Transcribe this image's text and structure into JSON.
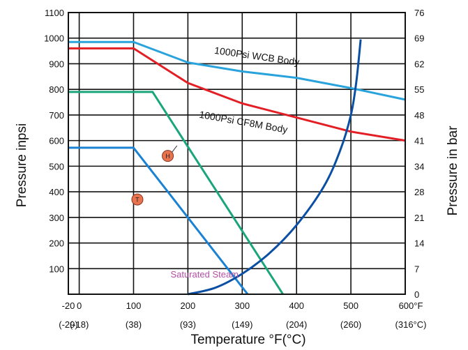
{
  "chart_data": {
    "type": "line",
    "title": "",
    "xlabel": "Temperature °F(°C)",
    "ylabel_left": "Pressure inpsi",
    "ylabel_right": "Pressure in bar",
    "xlim": [
      -20,
      600
    ],
    "ylim": [
      0,
      1100
    ],
    "grid": true,
    "x_ticks": [
      {
        "value": -20,
        "label": "-20",
        "sublabel": "(-29)"
      },
      {
        "value": 0,
        "label": "0",
        "sublabel": "(-18)"
      },
      {
        "value": 100,
        "label": "100",
        "sublabel": "(38)"
      },
      {
        "value": 200,
        "label": "200",
        "sublabel": "(93)"
      },
      {
        "value": 300,
        "label": "300",
        "sublabel": "(149)"
      },
      {
        "value": 400,
        "label": "400",
        "sublabel": "(204)"
      },
      {
        "value": 500,
        "label": "500",
        "sublabel": "(260)"
      },
      {
        "value": 600,
        "label": "600°F",
        "sublabel": "(316°C)"
      }
    ],
    "y_ticks_left": [
      {
        "value": 100,
        "label": "100"
      },
      {
        "value": 200,
        "label": "200"
      },
      {
        "value": 300,
        "label": "300"
      },
      {
        "value": 400,
        "label": "400"
      },
      {
        "value": 500,
        "label": "500"
      },
      {
        "value": 600,
        "label": "600"
      },
      {
        "value": 700,
        "label": "700"
      },
      {
        "value": 800,
        "label": "800"
      },
      {
        "value": 900,
        "label": "900"
      },
      {
        "value": 1000,
        "label": "1000"
      },
      {
        "value": 1100,
        "label": "1100"
      }
    ],
    "y_ticks_right": [
      {
        "value": 0,
        "label": "0"
      },
      {
        "value": 100,
        "label": "7"
      },
      {
        "value": 200,
        "label": "14"
      },
      {
        "value": 300,
        "label": "21"
      },
      {
        "value": 400,
        "label": "28"
      },
      {
        "value": 500,
        "label": "34"
      },
      {
        "value": 600,
        "label": "41"
      },
      {
        "value": 700,
        "label": "48"
      },
      {
        "value": 800,
        "label": "55"
      },
      {
        "value": 900,
        "label": "62"
      },
      {
        "value": 1000,
        "label": "69"
      },
      {
        "value": 1100,
        "label": "76"
      }
    ],
    "series": [
      {
        "name": "1000Psi WCB Body",
        "color": "#29a3dc",
        "points": [
          [
            -20,
            985
          ],
          [
            100,
            985
          ],
          [
            200,
            905
          ],
          [
            300,
            870
          ],
          [
            400,
            845
          ],
          [
            500,
            805
          ],
          [
            600,
            760
          ]
        ]
      },
      {
        "name": "1000Psi CF8M Body",
        "color": "#e31f26",
        "points": [
          [
            -20,
            960
          ],
          [
            100,
            960
          ],
          [
            200,
            825
          ],
          [
            300,
            745
          ],
          [
            400,
            690
          ],
          [
            500,
            635
          ],
          [
            600,
            600
          ]
        ]
      },
      {
        "name": "H",
        "color": "#1aa57a",
        "points": [
          [
            -20,
            790
          ],
          [
            135,
            790
          ],
          [
            375,
            0
          ]
        ]
      },
      {
        "name": "T",
        "color": "#1a82d4",
        "points": [
          [
            -20,
            572
          ],
          [
            100,
            572
          ],
          [
            310,
            0
          ]
        ]
      },
      {
        "name": "Saturated Steam",
        "color": "#0a4fa3",
        "points": [
          [
            200,
            0
          ],
          [
            250,
            25
          ],
          [
            300,
            80
          ],
          [
            350,
            160
          ],
          [
            400,
            270
          ],
          [
            450,
            420
          ],
          [
            480,
            560
          ],
          [
            500,
            700
          ],
          [
            510,
            830
          ],
          [
            518,
            995
          ]
        ]
      }
    ],
    "annotations": [
      {
        "text": "1000Psi  WCB  Body",
        "x": 248,
        "y": 940,
        "rotate": 8
      },
      {
        "text": "1000Psi  CF8M  Body",
        "x": 220,
        "y": 690,
        "rotate": 10
      }
    ],
    "steam_label": {
      "text": "Saturated Steam",
      "color": "#b44ea6",
      "x": 168,
      "y": 65
    },
    "markers": [
      {
        "text": "H",
        "x": 163,
        "y": 540,
        "pointer": [
          180,
          580
        ]
      },
      {
        "text": "T",
        "x": 107,
        "y": 370,
        "pointer": [
          115,
          385
        ]
      }
    ]
  }
}
